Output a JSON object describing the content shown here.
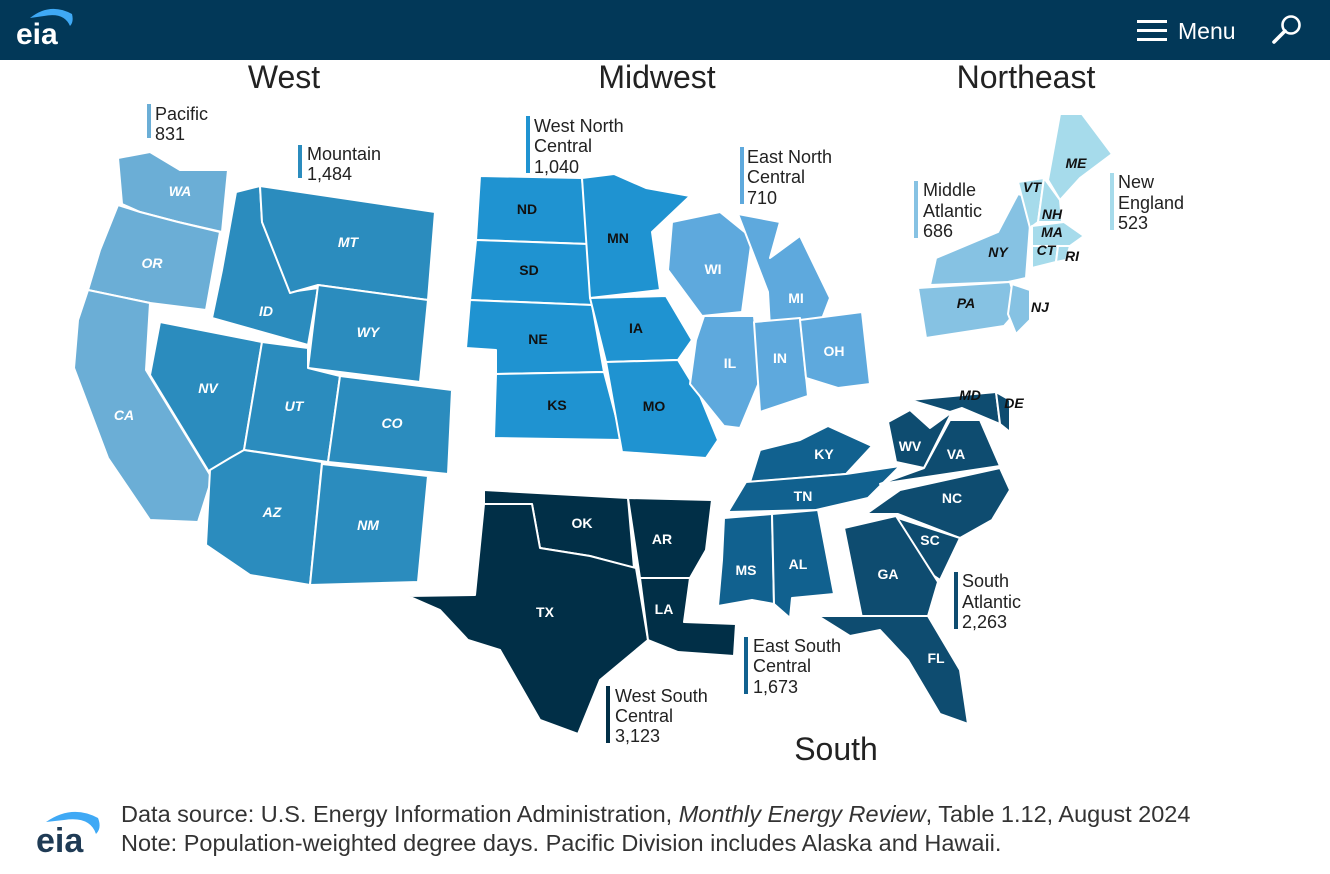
{
  "header": {
    "logo_text": "eia",
    "menu_label": "Menu"
  },
  "regions": {
    "west": "West",
    "midwest": "Midwest",
    "northeast": "Northeast",
    "south": "South"
  },
  "divisions": {
    "pacific": {
      "lines": [
        "Pacific",
        "831"
      ],
      "value": 831
    },
    "mountain": {
      "lines": [
        "Mountain",
        "1,484"
      ],
      "value": 1484
    },
    "west_north_central": {
      "lines": [
        "West North",
        "Central",
        "1,040"
      ],
      "value": 1040
    },
    "east_north_central": {
      "lines": [
        "East North",
        "Central",
        "710"
      ],
      "value": 710
    },
    "middle_atlantic": {
      "lines": [
        "Middle",
        "Atlantic",
        "686"
      ],
      "value": 686
    },
    "new_england": {
      "lines": [
        "New",
        "England",
        "523"
      ],
      "value": 523
    },
    "south_atlantic": {
      "lines": [
        "South",
        "Atlantic",
        "2,263"
      ],
      "value": 2263
    },
    "east_south_central": {
      "lines": [
        "East South",
        "Central",
        "1,673"
      ],
      "value": 1673
    },
    "west_south_central": {
      "lines": [
        "West South",
        "Central",
        "3,123"
      ],
      "value": 3123
    }
  },
  "colors": {
    "header_bg": "#023858",
    "pacific": "#6baed6",
    "mountain": "#2b8cbe",
    "west_north_central": "#1f93d1",
    "east_north_central": "#5ea9dd",
    "middle_atlantic": "#86c2e3",
    "new_england": "#a6dbeb",
    "south_atlantic": "#0e4c70",
    "east_south_central": "#11618f",
    "west_south_central": "#012f47"
  },
  "states": {
    "WA": "WA",
    "OR": "OR",
    "CA": "CA",
    "NV": "NV",
    "ID": "ID",
    "MT": "MT",
    "WY": "WY",
    "UT": "UT",
    "CO": "CO",
    "AZ": "AZ",
    "NM": "NM",
    "ND": "ND",
    "SD": "SD",
    "NE": "NE",
    "KS": "KS",
    "MN": "MN",
    "IA": "IA",
    "MO": "MO",
    "WI": "WI",
    "MI": "MI",
    "IL": "IL",
    "IN": "IN",
    "OH": "OH",
    "NY": "NY",
    "PA": "PA",
    "NJ": "NJ",
    "ME": "ME",
    "VT": "VT",
    "NH": "NH",
    "MA": "MA",
    "CT": "CT",
    "RI": "RI",
    "OK": "OK",
    "TX": "TX",
    "AR": "AR",
    "LA": "LA",
    "KY": "KY",
    "TN": "TN",
    "MS": "MS",
    "AL": "AL",
    "WV": "WV",
    "MD": "MD",
    "DE": "DE",
    "VA": "VA",
    "NC": "NC",
    "SC": "SC",
    "GA": "GA",
    "FL": "FL"
  },
  "footer": {
    "source_prefix": "Data source: U.S. Energy Information Administration, ",
    "source_title": "Monthly Energy Review",
    "source_suffix": ", Table 1.12, August 2024",
    "note": "Note: Population-weighted degree days. Pacific Division includes Alaska and Hawaii."
  }
}
